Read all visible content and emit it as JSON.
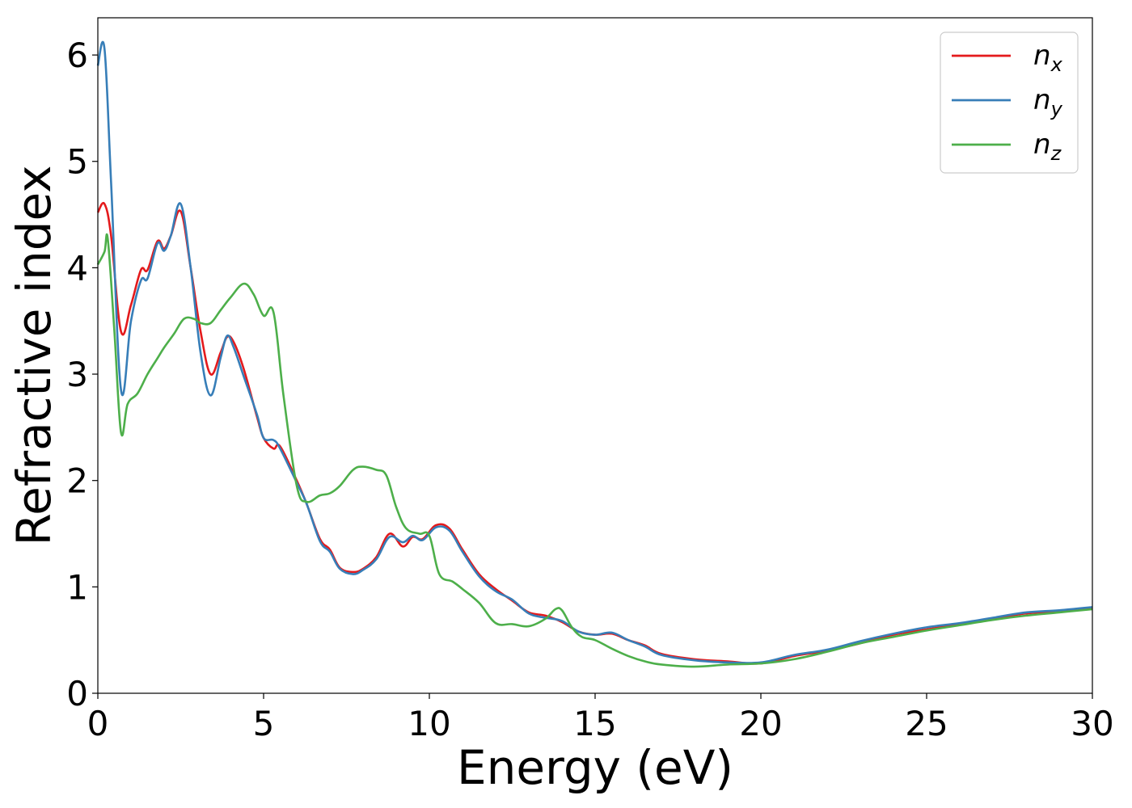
{
  "chart_data": {
    "type": "line",
    "title": "",
    "xlabel": "Energy (eV)",
    "ylabel": "Refractive index",
    "xlim": [
      0,
      30
    ],
    "ylim": [
      0,
      6.35
    ],
    "xticks": [
      0,
      5,
      10,
      15,
      20,
      25,
      30
    ],
    "yticks": [
      0,
      1,
      2,
      3,
      4,
      5,
      6
    ],
    "grid": false,
    "legend_position": "top-right",
    "series": [
      {
        "name": "n",
        "subscript": "x",
        "color": "#e41a1c",
        "x": [
          0,
          0.2,
          0.4,
          0.7,
          1.0,
          1.3,
          1.5,
          1.8,
          2.0,
          2.2,
          2.5,
          2.8,
          3.1,
          3.4,
          3.7,
          3.9,
          4.1,
          4.4,
          4.8,
          5.0,
          5.3,
          5.5,
          6.0,
          6.3,
          6.7,
          7.0,
          7.3,
          7.7,
          8.0,
          8.4,
          8.8,
          9.2,
          9.5,
          9.8,
          10.2,
          10.6,
          11.0,
          11.5,
          12.0,
          12.5,
          13.0,
          13.5,
          14.0,
          14.5,
          15.0,
          15.5,
          16.0,
          16.5,
          17.0,
          18.0,
          19.0,
          20.0,
          21.0,
          22.0,
          23.0,
          24.0,
          25.0,
          26.0,
          27.0,
          28.0,
          29.0,
          30.0
        ],
        "y": [
          4.52,
          4.6,
          4.3,
          3.4,
          3.65,
          3.98,
          3.98,
          4.25,
          4.18,
          4.3,
          4.53,
          4.0,
          3.4,
          3.0,
          3.2,
          3.35,
          3.3,
          3.05,
          2.6,
          2.4,
          2.3,
          2.32,
          2.0,
          1.78,
          1.45,
          1.35,
          1.18,
          1.14,
          1.17,
          1.28,
          1.5,
          1.38,
          1.47,
          1.45,
          1.58,
          1.55,
          1.35,
          1.12,
          0.98,
          0.87,
          0.76,
          0.73,
          0.67,
          0.58,
          0.55,
          0.56,
          0.5,
          0.45,
          0.37,
          0.32,
          0.3,
          0.28,
          0.35,
          0.4,
          0.47,
          0.55,
          0.6,
          0.65,
          0.7,
          0.75,
          0.77,
          0.8
        ]
      },
      {
        "name": "n",
        "subscript": "y",
        "color": "#377eb8",
        "x": [
          0,
          0.2,
          0.4,
          0.7,
          1.0,
          1.3,
          1.5,
          1.8,
          2.0,
          2.2,
          2.5,
          2.8,
          3.1,
          3.4,
          3.7,
          3.9,
          4.1,
          4.4,
          4.8,
          5.0,
          5.3,
          5.5,
          6.0,
          6.3,
          6.7,
          7.0,
          7.3,
          7.7,
          8.0,
          8.4,
          8.8,
          9.2,
          9.5,
          9.8,
          10.2,
          10.6,
          11.0,
          11.5,
          12.0,
          12.5,
          13.0,
          13.5,
          14.0,
          14.5,
          15.0,
          15.5,
          16.0,
          16.5,
          17.0,
          18.0,
          19.0,
          20.0,
          21.0,
          22.0,
          23.0,
          24.0,
          25.0,
          26.0,
          27.0,
          28.0,
          29.0,
          30.0
        ],
        "y": [
          5.9,
          6.06,
          4.8,
          2.85,
          3.5,
          3.88,
          3.9,
          4.23,
          4.16,
          4.3,
          4.6,
          4.0,
          3.2,
          2.8,
          3.15,
          3.36,
          3.25,
          2.98,
          2.62,
          2.4,
          2.38,
          2.3,
          1.98,
          1.78,
          1.43,
          1.33,
          1.17,
          1.12,
          1.16,
          1.26,
          1.47,
          1.42,
          1.48,
          1.44,
          1.56,
          1.53,
          1.33,
          1.1,
          0.96,
          0.88,
          0.75,
          0.71,
          0.68,
          0.58,
          0.55,
          0.57,
          0.5,
          0.44,
          0.36,
          0.31,
          0.29,
          0.29,
          0.36,
          0.41,
          0.49,
          0.56,
          0.62,
          0.66,
          0.71,
          0.76,
          0.78,
          0.81
        ]
      },
      {
        "name": "n",
        "subscript": "z",
        "color": "#4daf4a",
        "x": [
          0,
          0.2,
          0.3,
          0.5,
          0.7,
          0.9,
          1.2,
          1.5,
          1.8,
          2.0,
          2.3,
          2.6,
          2.9,
          3.1,
          3.4,
          3.7,
          4.0,
          4.4,
          4.7,
          5.0,
          5.3,
          5.6,
          6.0,
          6.3,
          6.7,
          7.0,
          7.3,
          7.7,
          8.0,
          8.4,
          8.7,
          9.0,
          9.3,
          9.7,
          10.0,
          10.3,
          10.7,
          11.0,
          11.5,
          12.0,
          12.5,
          13.0,
          13.5,
          13.8,
          14.0,
          14.3,
          14.6,
          15.0,
          15.5,
          16.0,
          16.5,
          17.0,
          18.0,
          19.0,
          20.0,
          21.0,
          22.0,
          23.0,
          24.0,
          25.0,
          26.0,
          27.0,
          28.0,
          29.0,
          30.0
        ],
        "y": [
          4.03,
          4.15,
          4.27,
          3.4,
          2.45,
          2.72,
          2.82,
          3.0,
          3.15,
          3.25,
          3.38,
          3.52,
          3.52,
          3.48,
          3.48,
          3.6,
          3.72,
          3.85,
          3.75,
          3.55,
          3.58,
          2.8,
          1.95,
          1.8,
          1.86,
          1.88,
          1.95,
          2.1,
          2.13,
          2.1,
          2.05,
          1.75,
          1.55,
          1.5,
          1.48,
          1.12,
          1.05,
          0.98,
          0.85,
          0.66,
          0.65,
          0.63,
          0.7,
          0.79,
          0.78,
          0.62,
          0.53,
          0.5,
          0.42,
          0.35,
          0.3,
          0.27,
          0.25,
          0.27,
          0.28,
          0.32,
          0.39,
          0.47,
          0.53,
          0.59,
          0.64,
          0.69,
          0.73,
          0.76,
          0.79
        ]
      }
    ]
  }
}
